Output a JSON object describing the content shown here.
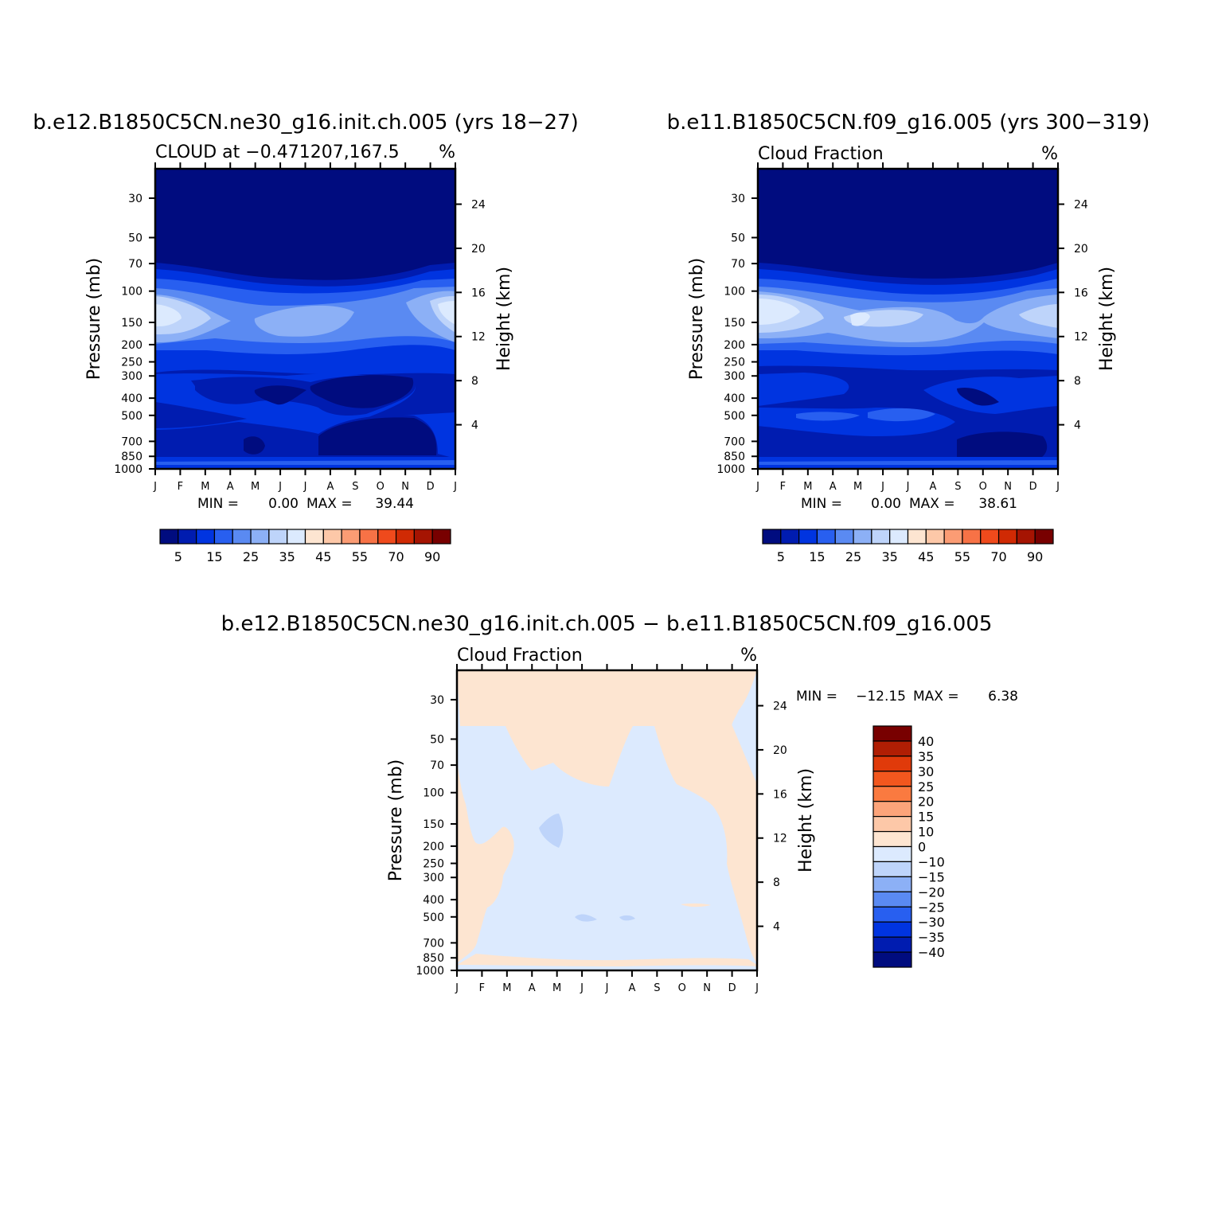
{
  "chart_data": [
    {
      "type": "heatmap",
      "title": "b.e12.B1850C5CN.ne30_g16.init.ch.005 (yrs 18-27)",
      "subtitle_left": "CLOUD at -0.471207,167.5",
      "units": "%",
      "x_tick_labels": [
        "J",
        "F",
        "M",
        "A",
        "M",
        "J",
        "J",
        "A",
        "S",
        "O",
        "N",
        "D",
        "J"
      ],
      "y_left_label": "Pressure (mb)",
      "y_left_ticks": [
        30,
        50,
        70,
        100,
        150,
        200,
        250,
        300,
        400,
        500,
        700,
        850,
        1000
      ],
      "y_right_label": "Height (km)",
      "y_right_ticks": [
        4,
        8,
        12,
        16,
        20,
        24
      ],
      "stats": {
        "min_label": "MIN =",
        "min": "0.00",
        "max_label": "MAX =",
        "max": "39.44"
      },
      "colorbar": {
        "levels": [
          "5",
          "15",
          "25",
          "35",
          "45",
          "55",
          "70",
          "90"
        ],
        "colors": [
          "#000c7f",
          "#001cb0",
          "#0034e0",
          "#285ff0",
          "#5a8af2",
          "#8cb0f6",
          "#bed4fa",
          "#dceafe",
          "#fde5d1",
          "#fdc8a8",
          "#fb9c74",
          "#f77246",
          "#ef4a1c",
          "#d02a04",
          "#a51402",
          "#780000"
        ]
      }
    },
    {
      "type": "heatmap",
      "title": "b.e11.B1850C5CN.f09_g16.005 (yrs 300-319)",
      "subtitle_left": "Cloud Fraction",
      "units": "%",
      "x_tick_labels": [
        "J",
        "F",
        "M",
        "A",
        "M",
        "J",
        "J",
        "A",
        "S",
        "O",
        "N",
        "D",
        "J"
      ],
      "y_left_label": "Pressure (mb)",
      "y_left_ticks": [
        30,
        50,
        70,
        100,
        150,
        200,
        250,
        300,
        400,
        500,
        700,
        850,
        1000
      ],
      "y_right_label": "Height (km)",
      "y_right_ticks": [
        4,
        8,
        12,
        16,
        20,
        24
      ],
      "stats": {
        "min_label": "MIN =",
        "min": "0.00",
        "max_label": "MAX =",
        "max": "38.61"
      },
      "colorbar": {
        "levels": [
          "5",
          "15",
          "25",
          "35",
          "45",
          "55",
          "70",
          "90"
        ],
        "colors": [
          "#000c7f",
          "#001cb0",
          "#0034e0",
          "#285ff0",
          "#5a8af2",
          "#8cb0f6",
          "#bed4fa",
          "#dceafe",
          "#fde5d1",
          "#fdc8a8",
          "#fb9c74",
          "#f77246",
          "#ef4a1c",
          "#d02a04",
          "#a51402",
          "#780000"
        ]
      }
    },
    {
      "type": "heatmap",
      "title": "b.e12.B1850C5CN.ne30_g16.init.ch.005 - b.e11.B1850C5CN.f09_g16.005",
      "subtitle_left": "Cloud Fraction",
      "units": "%",
      "x_tick_labels": [
        "J",
        "F",
        "M",
        "A",
        "M",
        "J",
        "J",
        "A",
        "S",
        "O",
        "N",
        "D",
        "J"
      ],
      "y_left_label": "Pressure (mb)",
      "y_left_ticks": [
        30,
        50,
        70,
        100,
        150,
        200,
        250,
        300,
        400,
        500,
        700,
        850,
        1000
      ],
      "y_right_label": "Height (km)",
      "y_right_ticks": [
        4,
        8,
        12,
        16,
        20,
        24
      ],
      "stats": {
        "min_label": "MIN =",
        "min": "-12.15",
        "max_label": "MAX =",
        "max": "6.38"
      },
      "colorbar": {
        "levels": [
          "40",
          "35",
          "30",
          "25",
          "20",
          "15",
          "10",
          "0",
          "-10",
          "-15",
          "-20",
          "-25",
          "-30",
          "-35",
          "-40"
        ],
        "colors": [
          "#780000",
          "#b01e04",
          "#e03a0a",
          "#f2571e",
          "#fa7a40",
          "#fca47a",
          "#fdc8a8",
          "#fde5d1",
          "#dceafe",
          "#bed4fa",
          "#8cb0f6",
          "#5a8af2",
          "#285ff0",
          "#0034e0",
          "#001cb0",
          "#000c7f"
        ]
      }
    }
  ]
}
